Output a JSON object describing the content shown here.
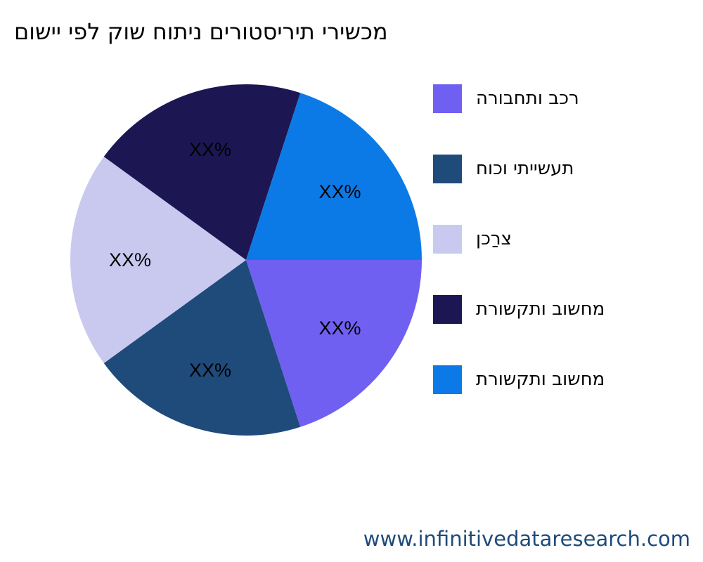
{
  "chart_data": {
    "type": "pie",
    "title": "םושיי יפל קוש חותינ םירוטסירית ירישכמ",
    "categories": [
      "הרובחתו בכר",
      "חוכו יתיישעת",
      "ןכרַצ",
      "תרושקתו בושחמ",
      "תרושקתו בושחמ"
    ],
    "values": [
      20,
      20,
      20,
      20,
      20
    ],
    "data_labels": [
      "XX%",
      "XX%",
      "XX%",
      "XX%",
      "XX%"
    ],
    "colors": [
      "#7060f2",
      "#1f4b7a",
      "#c9c9f0",
      "#1c1753",
      "#0c7ae6"
    ],
    "start_angle": "3 o'clock",
    "direction": "clockwise",
    "legend_position": "right"
  },
  "footer": "www.infinitivedataresearch.com"
}
